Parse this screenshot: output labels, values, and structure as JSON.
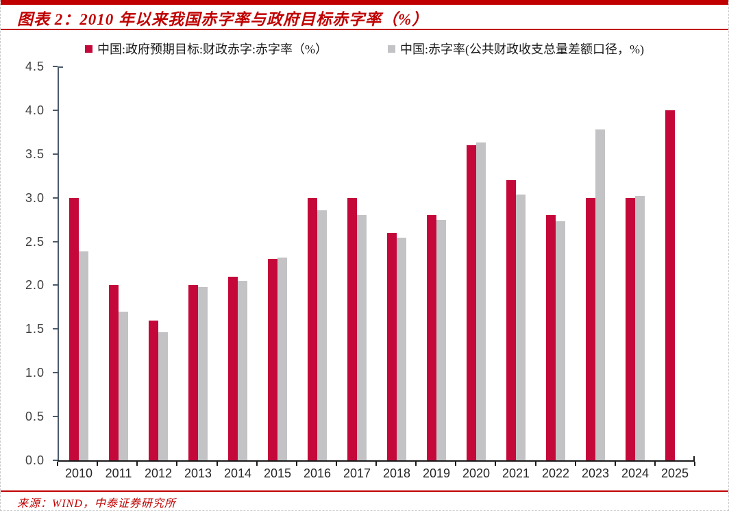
{
  "header": {
    "title": "图表 2：2010 年以来我国赤字率与政府目标赤字率（%）"
  },
  "footer": {
    "source": "来源：WIND，中泰证券研究所"
  },
  "colors": {
    "accent_red": "#C00000",
    "bar_red": "#C4093A",
    "bar_gray": "#C3C3C5",
    "y_axis": "#4A5A6A",
    "x_axis": "#1A1A1A"
  },
  "chart_data": {
    "type": "bar",
    "categories": [
      "2010",
      "2011",
      "2012",
      "2013",
      "2014",
      "2015",
      "2016",
      "2017",
      "2018",
      "2019",
      "2020",
      "2021",
      "2022",
      "2023",
      "2024",
      "2025"
    ],
    "series": [
      {
        "name": "中国:政府预期目标:财政赤字:赤字率（%）",
        "color_key": "bar_red",
        "values": [
          3.0,
          2.0,
          1.6,
          2.0,
          2.1,
          2.3,
          3.0,
          3.0,
          2.6,
          2.8,
          3.6,
          3.2,
          2.8,
          3.0,
          3.0,
          4.0
        ]
      },
      {
        "name": "中国:赤字率(公共财政收支总量差额口径，%)",
        "color_key": "bar_gray",
        "values": [
          2.39,
          1.7,
          1.46,
          1.98,
          2.05,
          2.32,
          2.86,
          2.8,
          2.54,
          2.75,
          3.63,
          3.04,
          2.73,
          3.78,
          3.02,
          null
        ]
      }
    ],
    "ylim": [
      0,
      4.5
    ],
    "ytick_step": 0.5,
    "ytick_labels": [
      "0.0",
      "0.5",
      "1.0",
      "1.5",
      "2.0",
      "2.5",
      "3.0",
      "3.5",
      "4.0",
      "4.5"
    ],
    "grid": false,
    "legend_position": "top"
  }
}
